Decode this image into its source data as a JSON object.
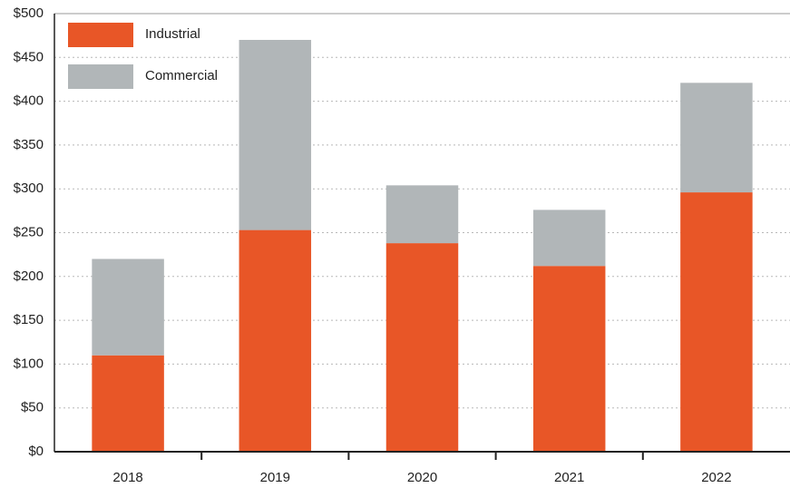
{
  "chart_data": {
    "type": "stacked_bar",
    "categories": [
      "2018",
      "2019",
      "2020",
      "2021",
      "2022"
    ],
    "series": [
      {
        "name": "Industrial",
        "color": "#e85627",
        "values": [
          110,
          253,
          238,
          212,
          296
        ]
      },
      {
        "name": "Commercial",
        "color": "#b1b6b8",
        "values": [
          110,
          217,
          66,
          64,
          125
        ]
      }
    ],
    "ylim": [
      0,
      500
    ],
    "yticks": [
      {
        "value": 0,
        "label": "$0"
      },
      {
        "value": 50,
        "label": "$50"
      },
      {
        "value": 100,
        "label": "$100"
      },
      {
        "value": 150,
        "label": "$150"
      },
      {
        "value": 200,
        "label": "$200"
      },
      {
        "value": 250,
        "label": "$250"
      },
      {
        "value": 300,
        "label": "$300"
      },
      {
        "value": 350,
        "label": "$350"
      },
      {
        "value": 400,
        "label": "$400"
      },
      {
        "value": 450,
        "label": "$450"
      },
      {
        "value": 500,
        "label": "$500"
      }
    ],
    "grid": true,
    "legend": "top-left"
  }
}
